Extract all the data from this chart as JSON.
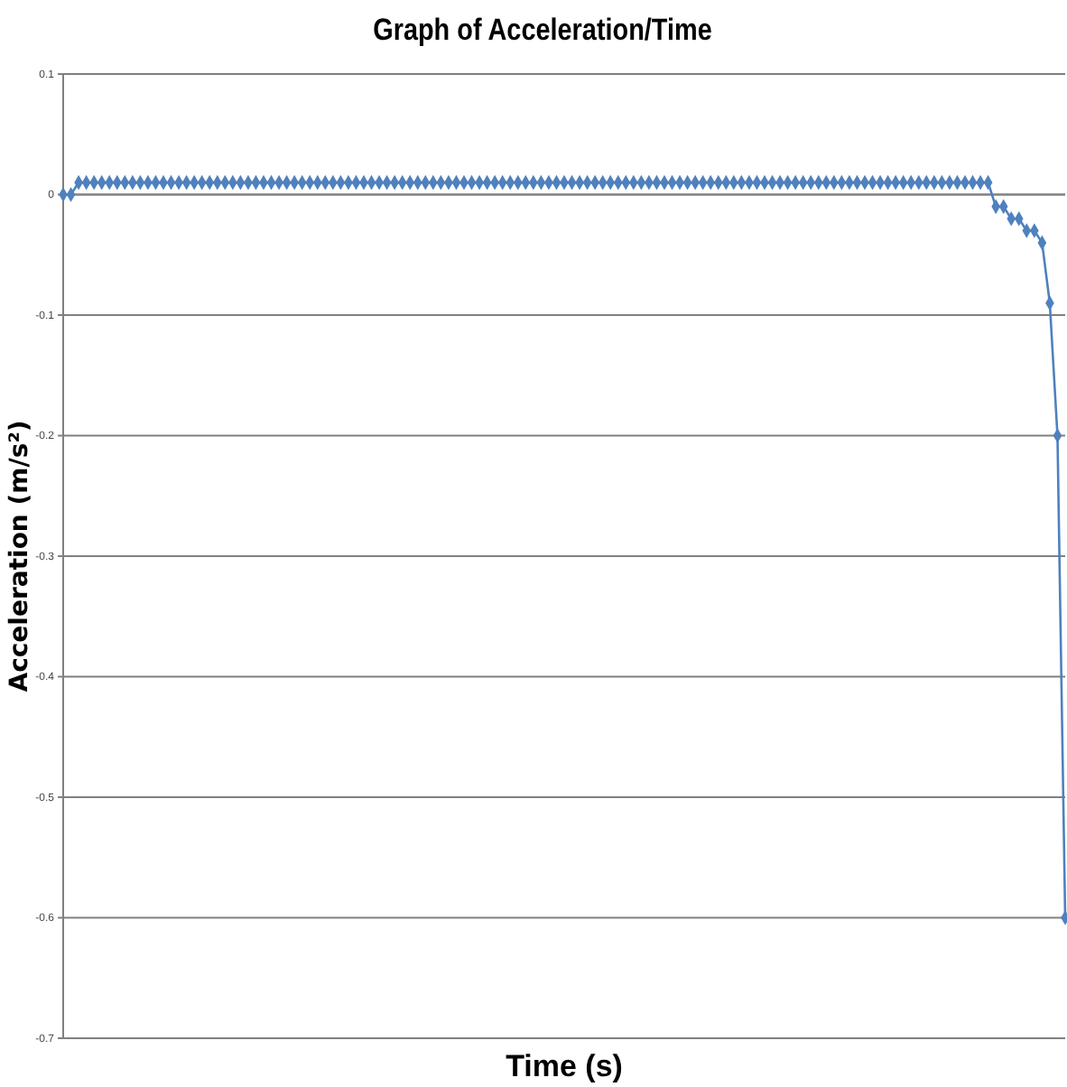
{
  "chart_data": {
    "type": "line",
    "title": "Graph of Acceleration/Time",
    "xlabel": "Time (s)",
    "ylabel": "Acceleration (m/s²)",
    "categories": [
      null,
      null,
      null,
      null,
      null,
      null,
      null,
      null,
      null,
      null,
      null,
      null,
      null,
      null,
      null,
      null,
      null,
      null,
      null,
      null,
      null,
      null,
      null,
      null,
      null,
      null,
      null,
      null,
      null,
      null,
      null,
      null,
      null,
      null,
      null,
      null,
      null,
      null,
      null,
      null,
      null,
      null,
      null,
      null,
      null,
      null,
      null,
      null,
      null,
      null,
      null,
      null,
      null,
      null,
      null,
      null,
      null,
      null,
      null,
      null,
      null,
      null,
      null,
      null,
      null,
      null,
      null,
      null,
      null,
      null,
      null,
      null,
      null,
      null,
      null,
      null,
      null,
      null,
      null,
      null,
      null,
      null,
      null,
      null,
      null,
      null,
      null,
      null,
      null,
      null,
      null,
      null,
      null,
      null,
      null,
      null,
      null,
      null,
      null,
      null,
      null,
      null,
      null,
      null,
      null,
      null,
      null,
      null,
      null,
      null,
      null,
      null,
      null,
      null,
      null,
      null,
      null,
      null,
      null,
      null,
      null,
      null,
      null,
      null,
      null,
      null,
      null,
      null,
      null,
      null,
      null
    ],
    "ylim": [
      -0.7,
      0.1
    ],
    "yticks": [
      0.1,
      0,
      -0.1,
      -0.2,
      -0.3,
      -0.4,
      -0.5,
      -0.6,
      -0.7
    ],
    "grid": "y",
    "marker": "diamond",
    "line_style": "solid",
    "series": [
      {
        "color": "#4f81bd",
        "values": [
          0,
          0,
          0.01,
          0.01,
          0.01,
          0.01,
          0.01,
          0.01,
          0.01,
          0.01,
          0.01,
          0.01,
          0.01,
          0.01,
          0.01,
          0.01,
          0.01,
          0.01,
          0.01,
          0.01,
          0.01,
          0.01,
          0.01,
          0.01,
          0.01,
          0.01,
          0.01,
          0.01,
          0.01,
          0.01,
          0.01,
          0.01,
          0.01,
          0.01,
          0.01,
          0.01,
          0.01,
          0.01,
          0.01,
          0.01,
          0.01,
          0.01,
          0.01,
          0.01,
          0.01,
          0.01,
          0.01,
          0.01,
          0.01,
          0.01,
          0.01,
          0.01,
          0.01,
          0.01,
          0.01,
          0.01,
          0.01,
          0.01,
          0.01,
          0.01,
          0.01,
          0.01,
          0.01,
          0.01,
          0.01,
          0.01,
          0.01,
          0.01,
          0.01,
          0.01,
          0.01,
          0.01,
          0.01,
          0.01,
          0.01,
          0.01,
          0.01,
          0.01,
          0.01,
          0.01,
          0.01,
          0.01,
          0.01,
          0.01,
          0.01,
          0.01,
          0.01,
          0.01,
          0.01,
          0.01,
          0.01,
          0.01,
          0.01,
          0.01,
          0.01,
          0.01,
          0.01,
          0.01,
          0.01,
          0.01,
          0.01,
          0.01,
          0.01,
          0.01,
          0.01,
          0.01,
          0.01,
          0.01,
          0.01,
          0.01,
          0.01,
          0.01,
          0.01,
          0.01,
          0.01,
          0.01,
          0.01,
          0.01,
          0.01,
          0.01,
          0.01,
          -0.01,
          -0.01,
          -0.02,
          -0.02,
          -0.03,
          -0.03,
          -0.04,
          -0.09,
          -0.2,
          -0.6
        ]
      }
    ]
  }
}
